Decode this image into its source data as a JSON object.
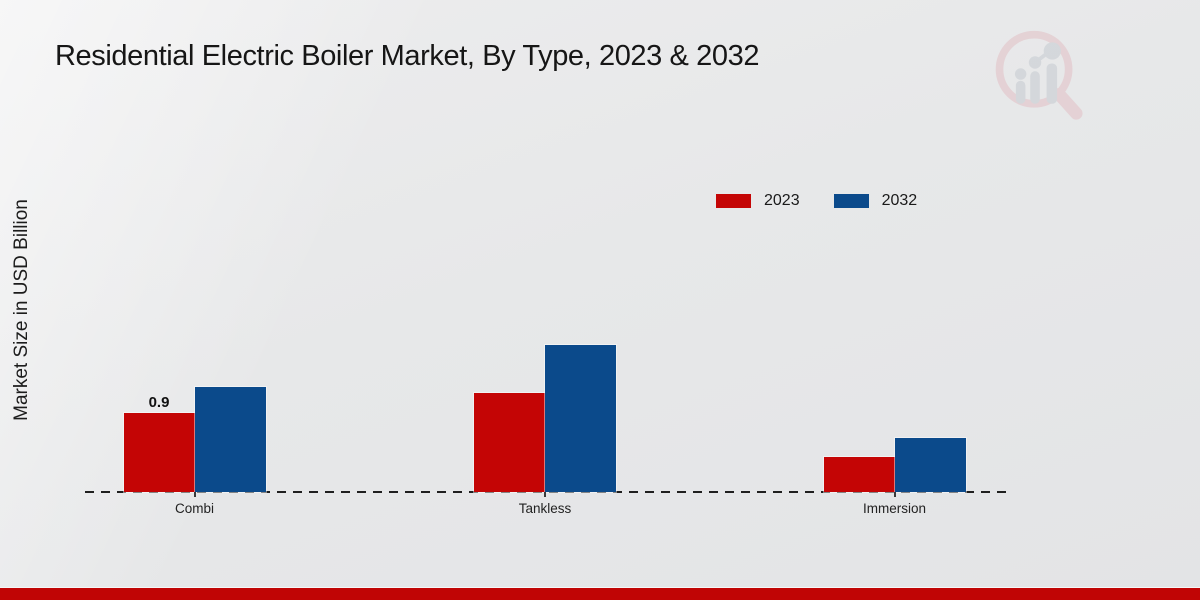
{
  "page": {
    "background_color": "#e9eaeb",
    "footer_band_color": "#c00505",
    "watermark": "market-research-future-logo"
  },
  "chart_data": {
    "type": "bar",
    "title": "Residential Electric Boiler Market, By Type, 2023 & 2032",
    "ylabel": "Market Size in USD Billion",
    "xlabel": "",
    "units": "USD Billion",
    "categories": [
      "Combi",
      "Tankless",
      "Immersion"
    ],
    "series": [
      {
        "name": "2023",
        "color": "#c40505",
        "values": [
          0.9,
          1.12,
          0.4
        ]
      },
      {
        "name": "2032",
        "color": "#0b4a8b",
        "values": [
          1.19,
          1.67,
          0.61
        ]
      }
    ],
    "data_labels": [
      {
        "series_index": 0,
        "category_index": 0,
        "text": "0.9"
      }
    ],
    "ylim": [
      0,
      1.9
    ],
    "grid": false,
    "y_axis_ticks_visible": false,
    "legend_position": "top-right",
    "baseline_style": "dashed"
  }
}
